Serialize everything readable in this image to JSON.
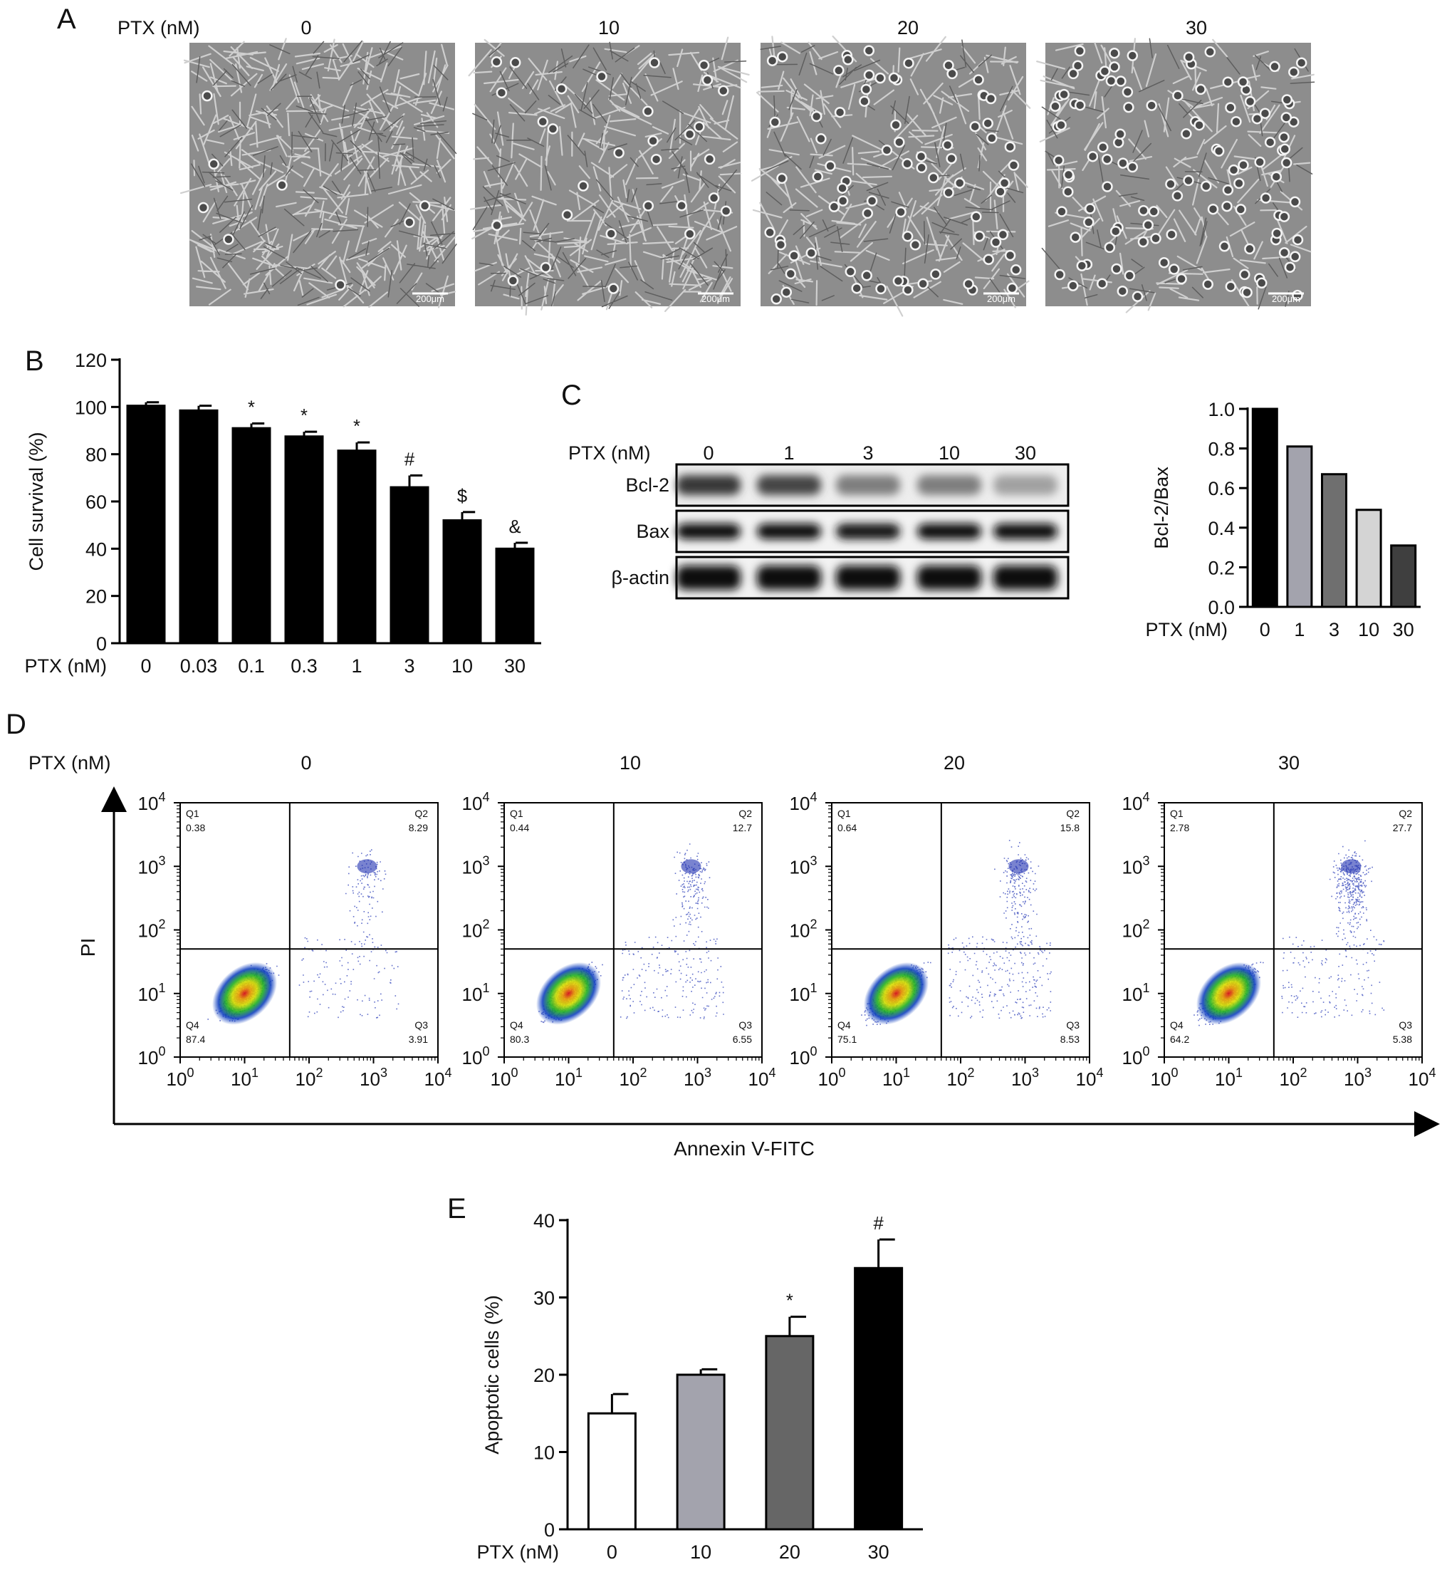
{
  "panel_letters": {
    "a": "A",
    "b": "B",
    "c": "C",
    "d": "D",
    "e": "E"
  },
  "common": {
    "ptx_label": "PTX (nM)"
  },
  "panel_a": {
    "columns": [
      "0",
      "10",
      "20",
      "30"
    ],
    "scale_bar": "200μm"
  },
  "chart_data": [
    {
      "id": "B",
      "type": "bar",
      "categories": [
        "0",
        "0.03",
        "0.1",
        "0.3",
        "1",
        "3",
        "10",
        "30"
      ],
      "values": [
        100.5,
        98.5,
        91,
        87.5,
        81.5,
        66,
        52,
        40
      ],
      "errors": [
        1.5,
        2,
        2,
        2,
        3.5,
        5,
        3.5,
        2.5
      ],
      "significance": [
        "",
        "",
        "*",
        "*",
        "*",
        "#",
        "$",
        "&"
      ],
      "ylabel": "Cell survival (%)",
      "xlabel": "PTX (nM)",
      "ylim": [
        0,
        120
      ],
      "yticks": [
        "0",
        "20",
        "40",
        "60",
        "80",
        "100",
        "120"
      ],
      "bar_colors": [
        "#000000"
      ],
      "grid": false
    },
    {
      "id": "C",
      "type": "bar",
      "categories": [
        "0",
        "1",
        "3",
        "10",
        "30"
      ],
      "values": [
        1.0,
        0.81,
        0.67,
        0.49,
        0.31
      ],
      "ylabel": "Bcl-2/Bax",
      "xlabel": "PTX (nM)",
      "ylim": [
        0,
        1.0
      ],
      "yticks": [
        "0.0",
        "0.2",
        "0.4",
        "0.6",
        "0.8",
        "1.0"
      ],
      "bar_colors": [
        "#000000",
        "#a3a3ad",
        "#6f6f6f",
        "#d4d4d4",
        "#3f3f3f"
      ],
      "grid": false
    },
    {
      "id": "E",
      "type": "bar",
      "categories": [
        "0",
        "10",
        "20",
        "30"
      ],
      "values": [
        15,
        20,
        25,
        33.8
      ],
      "errors": [
        2.5,
        0.7,
        2.5,
        3.7
      ],
      "significance": [
        "",
        "",
        "*",
        "#"
      ],
      "ylabel": "Apoptotic cells (%)",
      "xlabel": "PTX (nM)",
      "ylim": [
        0,
        40
      ],
      "yticks": [
        "0",
        "10",
        "20",
        "30",
        "40"
      ],
      "bar_colors": [
        "#ffffff",
        "#a3a3ad",
        "#666666",
        "#000000"
      ],
      "grid": false
    },
    {
      "id": "D",
      "type": "scatter",
      "plots": [
        {
          "label": "0",
          "q1": "0.38",
          "q2": "8.29",
          "q3": "3.91",
          "q4": "87.4"
        },
        {
          "label": "10",
          "q1": "0.44",
          "q2": "12.7",
          "q3": "6.55",
          "q4": "80.3"
        },
        {
          "label": "20",
          "q1": "0.64",
          "q2": "15.8",
          "q3": "8.53",
          "q4": "75.1"
        },
        {
          "label": "30",
          "q1": "2.78",
          "q2": "27.7",
          "q3": "5.38",
          "q4": "64.2"
        }
      ],
      "xlabel": "Annexin V-FITC",
      "ylabel": "PI",
      "axis_scale": "log",
      "tick_exponents": [
        "0",
        "1",
        "2",
        "3",
        "4"
      ],
      "quadrant_names": [
        "Q1",
        "Q2",
        "Q3",
        "Q4"
      ]
    }
  ],
  "western_blot": {
    "lane_labels": [
      "0",
      "1",
      "3",
      "10",
      "30"
    ],
    "rows": [
      "Bcl-2",
      "Bax",
      "β-actin"
    ],
    "intensity": {
      "Bcl-2": [
        0.75,
        0.7,
        0.45,
        0.45,
        0.3
      ],
      "Bax": [
        0.95,
        0.95,
        0.9,
        0.95,
        0.95
      ],
      "β-actin": [
        0.95,
        0.95,
        0.95,
        0.95,
        0.95
      ]
    }
  }
}
